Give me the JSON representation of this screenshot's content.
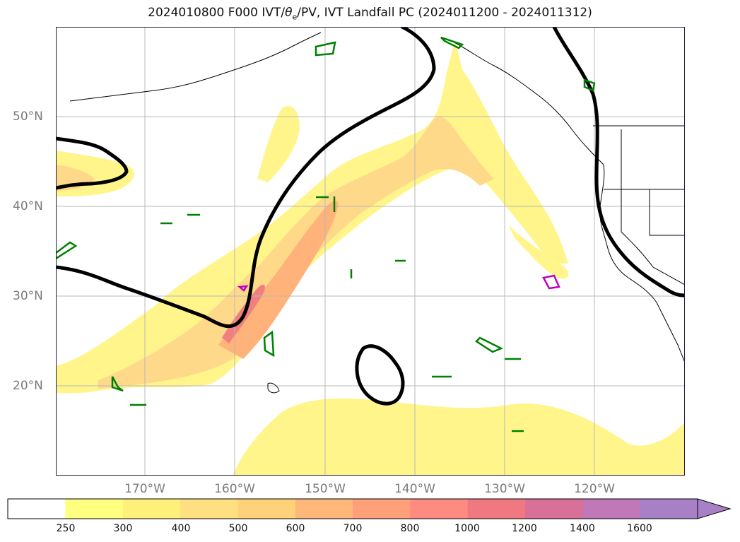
{
  "title": "2024010800 F000 IVT/θe/PV, IVT Landfall PC (2024011200 - 2024011312)",
  "title_parts": {
    "prefix": "2024010800 F000 IVT/",
    "theta": "θ",
    "theta_sub": "e",
    "suffix": "/PV, IVT Landfall PC (2024011200 - 2024011312)"
  },
  "lat_labels": [
    "50°N",
    "40°N",
    "30°N",
    "20°N"
  ],
  "lon_labels": [
    "170°W",
    "160°W",
    "150°W",
    "140°W",
    "130°W",
    "120°W"
  ],
  "colorbar": {
    "levels": [
      "250",
      "300",
      "400",
      "500",
      "600",
      "700",
      "800",
      "1000",
      "1200",
      "1400",
      "1600"
    ],
    "colors": [
      "#ffffff",
      "#ffff80",
      "#fff07a",
      "#ffe080",
      "#ffd27a",
      "#ffb87a",
      "#ffa07a",
      "#ff8a80",
      "#f07880",
      "#d87098",
      "#c078b8",
      "#a880c8"
    ],
    "extend": "max"
  },
  "colors": {
    "ivt_light": "#fff58a",
    "ivt_mid": "#ffd98a",
    "ivt_high": "#ffb27a",
    "ivt_core": "#f08080",
    "theta_e_contour": "#000000",
    "pv_contour": "#008000",
    "landfall_contour": "#c000c0",
    "grid": "#b8b8b8",
    "coast": "#000000"
  }
}
